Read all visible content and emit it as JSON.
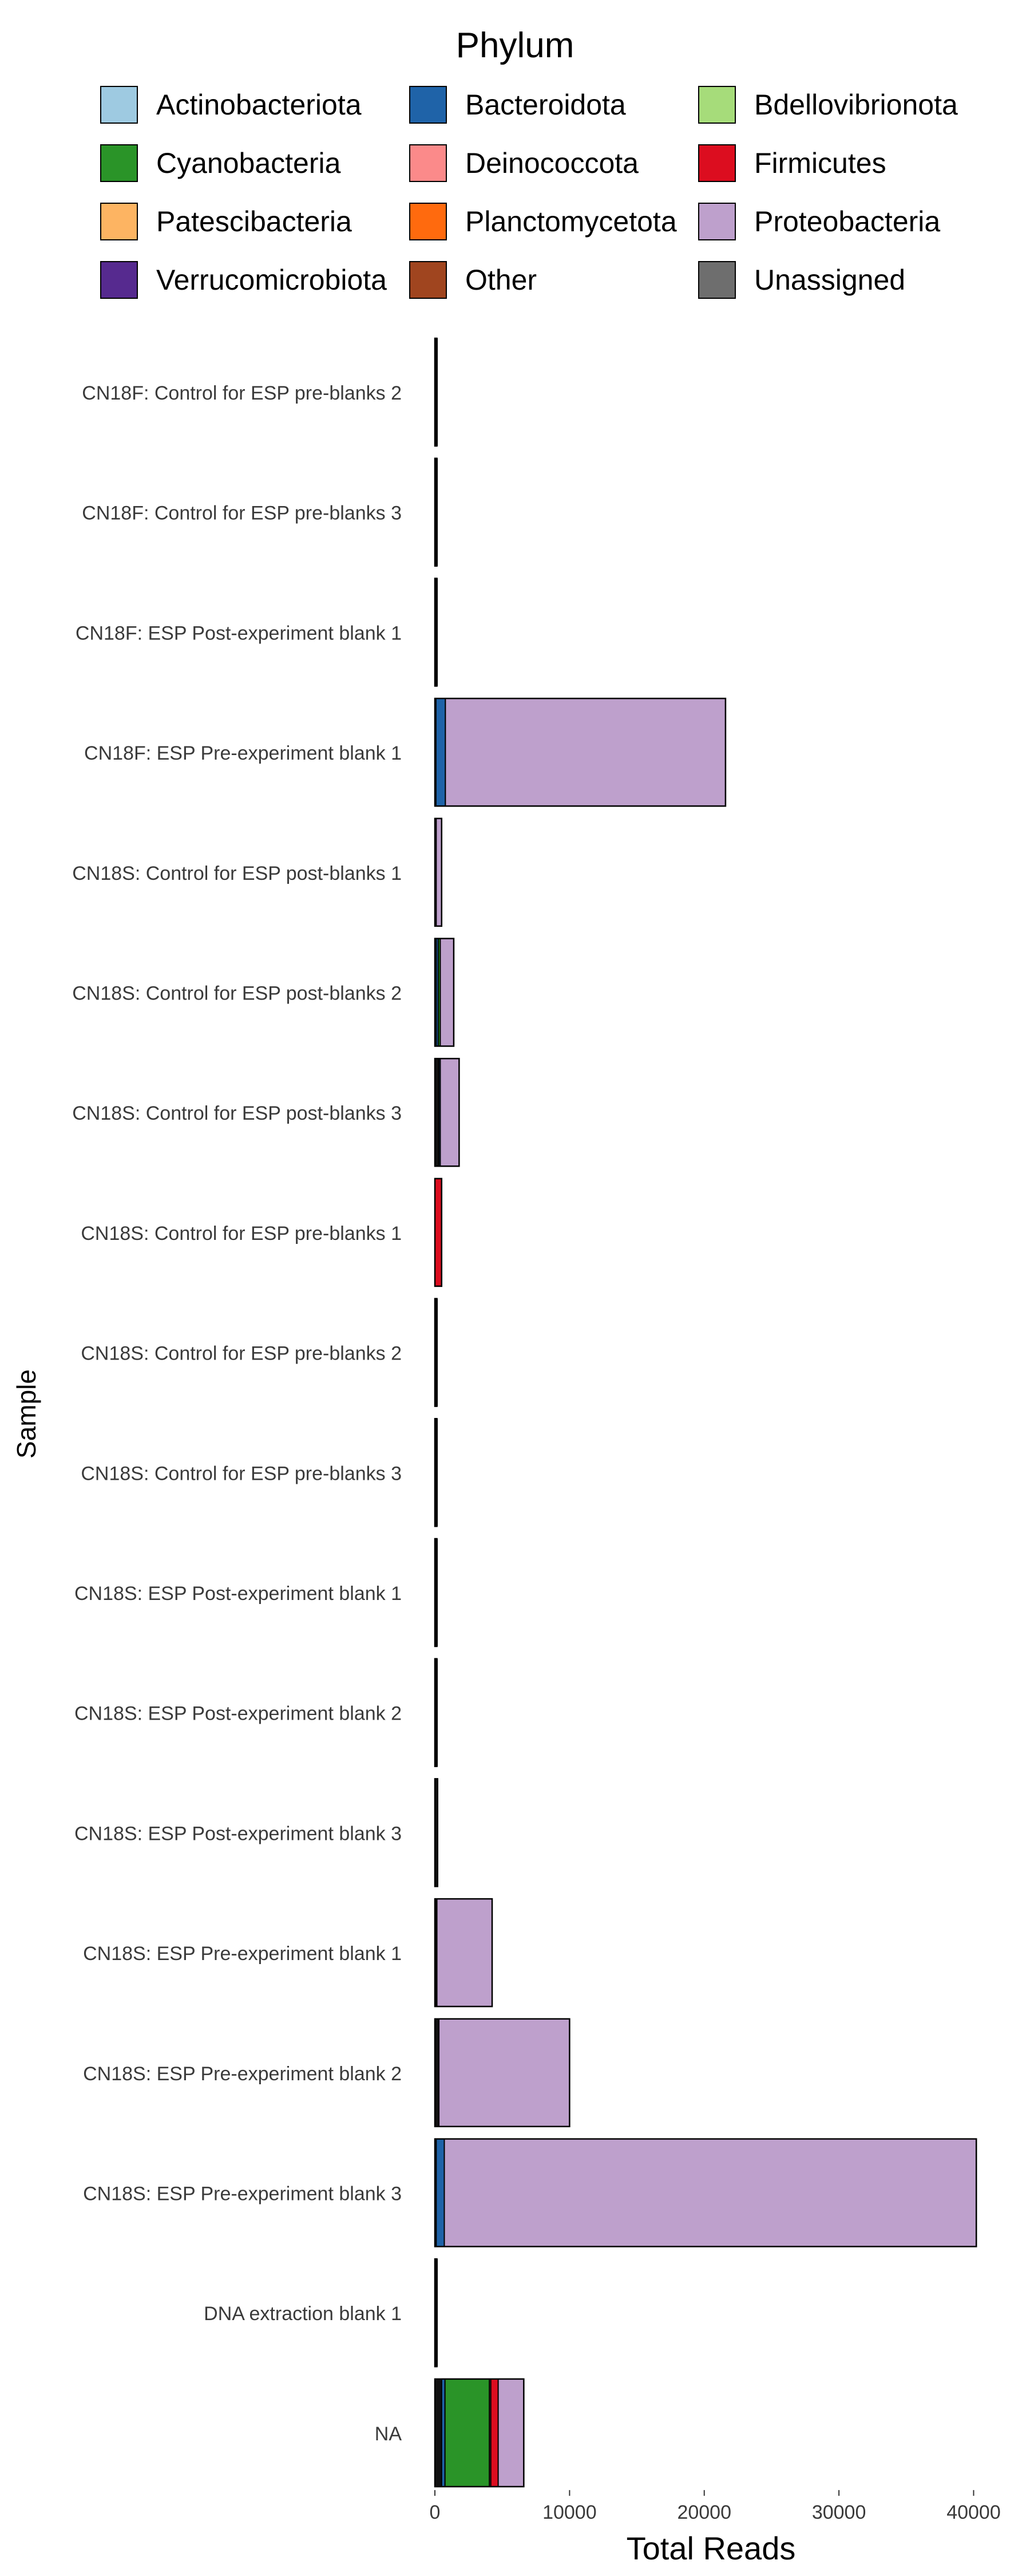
{
  "legend": {
    "title": "Phylum"
  },
  "chart_data": {
    "type": "bar",
    "orientation": "horizontal",
    "stacked": true,
    "title": "",
    "xlabel": "Total Reads",
    "ylabel": "Sample",
    "xlim": [
      0,
      41000
    ],
    "xticks": [
      0,
      10000,
      20000,
      30000,
      40000
    ],
    "xtick_labels": [
      "0",
      "10000",
      "20000",
      "30000",
      "40000"
    ],
    "grid": false,
    "legend_position": "top",
    "legend_columns": 3,
    "categories": [
      "CN18F: Control for ESP pre-blanks 2",
      "CN18F: Control for ESP pre-blanks 3",
      "CN18F: ESP Post-experiment blank 1",
      "CN18F: ESP Pre-experiment blank 1",
      "CN18S: Control for ESP post-blanks 1",
      "CN18S: Control for ESP post-blanks 2",
      "CN18S: Control for ESP post-blanks 3",
      "CN18S: Control for ESP pre-blanks 1",
      "CN18S: Control for ESP pre-blanks 2",
      "CN18S: Control for ESP pre-blanks 3",
      "CN18S: ESP Post-experiment blank 1",
      "CN18S: ESP Post-experiment blank 2",
      "CN18S: ESP Post-experiment blank 3",
      "CN18S: ESP Pre-experiment blank 1",
      "CN18S: ESP Pre-experiment blank 2",
      "CN18S: ESP Pre-experiment blank 3",
      "DNA extraction blank 1",
      "NA"
    ],
    "series": [
      {
        "name": "Actinobacteriota",
        "color": "#9ecae1",
        "values": [
          0,
          0,
          0,
          0,
          0,
          0,
          0,
          0,
          0,
          0,
          0,
          0,
          0,
          0,
          0,
          0,
          0,
          0
        ]
      },
      {
        "name": "Bacteroidota",
        "color": "#1f63a8",
        "values": [
          0,
          0,
          0,
          700,
          0,
          150,
          100,
          0,
          0,
          0,
          0,
          0,
          0,
          0,
          0,
          600,
          0,
          250
        ]
      },
      {
        "name": "Bdellovibrionota",
        "color": "#a6dc7a",
        "values": [
          0,
          0,
          0,
          0,
          0,
          0,
          0,
          0,
          0,
          0,
          0,
          0,
          0,
          0,
          0,
          0,
          0,
          0
        ]
      },
      {
        "name": "Cyanobacteria",
        "color": "#2a9428",
        "values": [
          0,
          0,
          0,
          0,
          0,
          150,
          0,
          0,
          0,
          0,
          0,
          0,
          0,
          0,
          0,
          0,
          0,
          3300
        ]
      },
      {
        "name": "Deinococcota",
        "color": "#fb8a8a",
        "values": [
          0,
          0,
          0,
          0,
          0,
          0,
          0,
          0,
          0,
          0,
          0,
          0,
          0,
          0,
          0,
          0,
          0,
          100
        ]
      },
      {
        "name": "Firmicutes",
        "color": "#dc0d1f",
        "values": [
          0,
          0,
          0,
          0,
          0,
          0,
          0,
          500,
          0,
          0,
          0,
          0,
          0,
          0,
          0,
          0,
          0,
          550
        ]
      },
      {
        "name": "Patescibacteria",
        "color": "#fdb462",
        "values": [
          0,
          0,
          0,
          0,
          0,
          0,
          0,
          0,
          0,
          0,
          0,
          0,
          0,
          0,
          0,
          0,
          0,
          0
        ]
      },
      {
        "name": "Planctomycetota",
        "color": "#ff6a0e",
        "values": [
          0,
          0,
          0,
          0,
          0,
          0,
          0,
          0,
          0,
          0,
          0,
          0,
          0,
          0,
          0,
          0,
          0,
          0
        ]
      },
      {
        "name": "Proteobacteria",
        "color": "#bea0cc",
        "values": [
          0,
          0,
          0,
          20800,
          400,
          1000,
          1400,
          0,
          0,
          0,
          0,
          0,
          0,
          4100,
          9700,
          39500,
          0,
          1900
        ]
      },
      {
        "name": "Verrucomicrobiota",
        "color": "#562a8f",
        "values": [
          0,
          0,
          0,
          0,
          0,
          0,
          0,
          0,
          0,
          0,
          0,
          0,
          0,
          0,
          0,
          0,
          0,
          0
        ]
      },
      {
        "name": "Other",
        "color": "#a0451f",
        "values": [
          0,
          0,
          0,
          0,
          0,
          0,
          0,
          0,
          0,
          0,
          0,
          0,
          0,
          0,
          0,
          0,
          0,
          0
        ]
      },
      {
        "name": "Unassigned",
        "color": "#6e6e6e",
        "values": [
          0,
          0,
          0,
          0,
          0,
          0,
          0,
          0,
          0,
          0,
          0,
          0,
          0,
          0,
          0,
          0,
          0,
          0
        ]
      }
    ],
    "black_segment": {
      "note_name": "",
      "values": [
        150,
        150,
        150,
        80,
        100,
        100,
        300,
        0,
        150,
        150,
        150,
        150,
        200,
        150,
        300,
        100,
        150,
        500
      ]
    }
  }
}
